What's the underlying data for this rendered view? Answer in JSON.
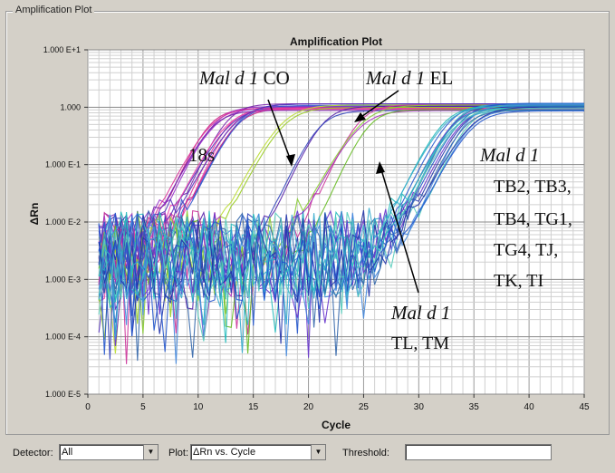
{
  "window": {
    "panel_title": "Amplification Plot"
  },
  "chart_data": {
    "type": "line",
    "title": "Amplification Plot",
    "xlabel": "Cycle",
    "ylabel": "ΔRn",
    "xlim": [
      0,
      45
    ],
    "ylim": [
      1e-05,
      10
    ],
    "y_scale": "log",
    "grid": true,
    "x_ticks": [
      "0",
      "5",
      "10",
      "15",
      "20",
      "25",
      "30",
      "35",
      "40",
      "45"
    ],
    "y_ticks": [
      "1.000 E-5",
      "1.000 E-4",
      "1.000 E-3",
      "1.000 E-2",
      "1.000 E-1",
      "1.000",
      "1.000 E+1"
    ],
    "groups": [
      {
        "label": "18s",
        "midpoint_cycle": 12.5,
        "plateau": 1.0,
        "baseline_noise": 0.003,
        "curves": 14,
        "colors": [
          "#cc2288",
          "#9933cc",
          "#3355cc",
          "#dd3399",
          "#7722aa",
          "#ee44aa",
          "#5533bb"
        ]
      },
      {
        "label": "Mal d 1 CO",
        "midpoint_cycle": 18.0,
        "plateau": 1.0,
        "baseline_noise": 0.003,
        "curves": 2,
        "colors": [
          "#99cc22",
          "#bbdd33"
        ]
      },
      {
        "label": "Mal d 1 EL",
        "midpoint_cycle": 21.0,
        "plateau": 1.0,
        "baseline_noise": 0.003,
        "curves": 2,
        "colors": [
          "#5522aa",
          "#3344bb"
        ]
      },
      {
        "label": "Mal d 1 TL, TM",
        "midpoint_cycle": 25.0,
        "plateau": 1.0,
        "baseline_noise": 0.003,
        "curves": 4,
        "colors": [
          "#cc3399",
          "#88cc33",
          "#aa33bb",
          "#66bb22"
        ]
      },
      {
        "label": "Mal d 1 TB2, TB3, TB4, TG1, TG4, TJ, TK, TI",
        "midpoint_cycle": 33.5,
        "plateau": 1.0,
        "baseline_noise": 0.003,
        "curves": 18,
        "colors": [
          "#2255cc",
          "#33aacc",
          "#6633cc",
          "#22bbbb",
          "#4488dd",
          "#3366aa",
          "#55ccbb",
          "#2233aa"
        ]
      }
    ],
    "annotations": [
      {
        "italic": "Mal d 1",
        "text": " CO"
      },
      {
        "italic": "Mal d 1",
        "text": " EL"
      },
      {
        "italic": "",
        "text": "18s"
      },
      {
        "italic": "Mal d 1",
        "text": ""
      },
      {
        "italic": "",
        "text": "TB2, TB3,"
      },
      {
        "italic": "",
        "text": "TB4, TG1,"
      },
      {
        "italic": "",
        "text": "TG4, TJ,"
      },
      {
        "italic": "",
        "text": "TK, TI"
      },
      {
        "italic": "Mal d 1",
        "text": ""
      },
      {
        "italic": "",
        "text": "TL, TM"
      }
    ]
  },
  "controls": {
    "detector_label": "Detector:",
    "detector_value": "All",
    "plot_label": "Plot:",
    "plot_value": "ΔRn vs. Cycle",
    "threshold_label": "Threshold:",
    "threshold_value": "",
    "dropdown_glyph": "▼"
  }
}
